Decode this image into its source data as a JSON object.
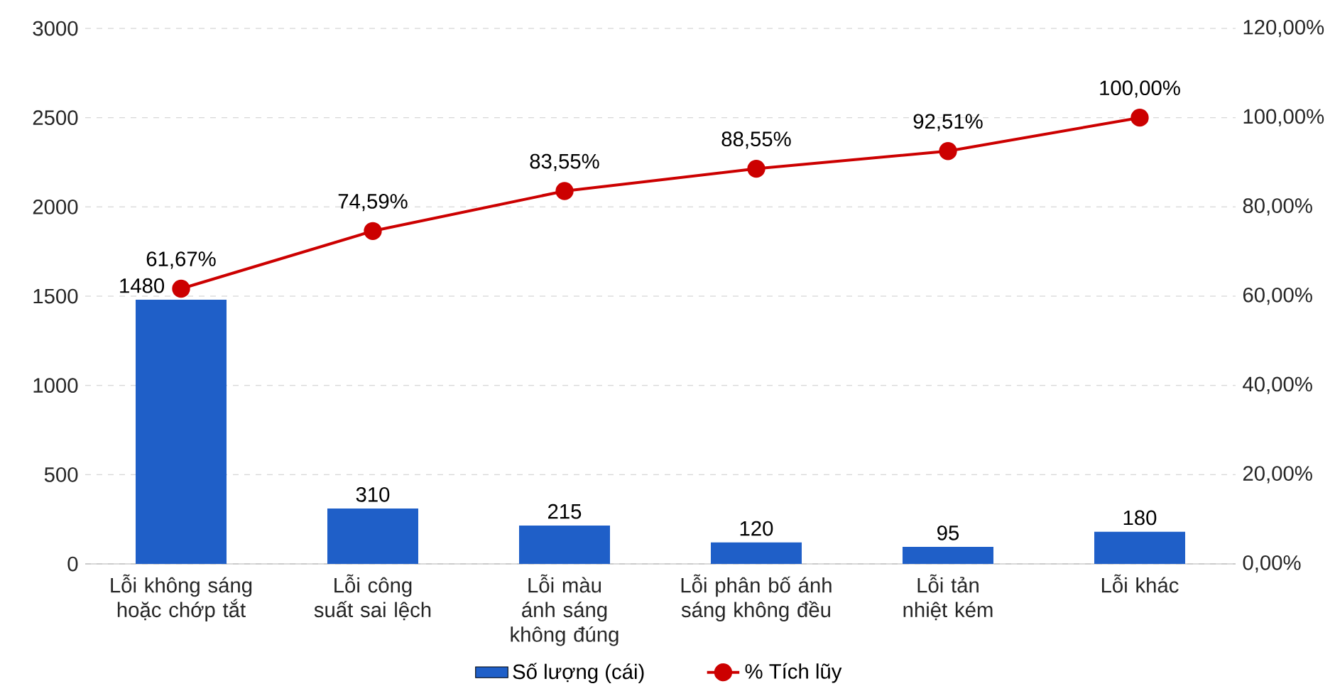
{
  "chart_data": {
    "type": "bar",
    "categories": [
      "Lỗi không sáng hoặc chớp tắt",
      "Lỗi công suất sai lệch",
      "Lỗi màu ánh sáng không đúng",
      "Lỗi phân bố ánh sáng không đều",
      "Lỗi tản nhiệt kém",
      "Lỗi khác"
    ],
    "series": [
      {
        "name": "Số lượng (cái)",
        "color": "#1f5fc8",
        "values": [
          1480,
          310,
          215,
          120,
          95,
          180
        ]
      },
      {
        "name": "% Tích lũy",
        "type": "line",
        "axis": "y2",
        "color": "#cc0000",
        "values": [
          61.67,
          74.59,
          83.55,
          88.55,
          92.51,
          100
        ],
        "value_labels": [
          "61,67%",
          "74,59%",
          "83,55%",
          "88,55%",
          "92,51%",
          "100,00%"
        ]
      }
    ],
    "ylim": [
      0,
      3000
    ],
    "yticks": [
      0,
      500,
      1000,
      1500,
      2000,
      2500,
      3000
    ],
    "y2lim": [
      0,
      120
    ],
    "y2ticks": [
      {
        "value": 0,
        "label": "0,00%"
      },
      {
        "value": 20,
        "label": "20,00%"
      },
      {
        "value": 40,
        "label": "40,00%"
      },
      {
        "value": 60,
        "label": "60,00%"
      },
      {
        "value": 80,
        "label": "80,00%"
      },
      {
        "value": 100,
        "label": "100,00%"
      },
      {
        "value": 120,
        "label": "120,00%"
      }
    ],
    "data_labels": true,
    "grid": "y",
    "legend": "bottom",
    "marker": "circle",
    "line_style": "solid"
  }
}
